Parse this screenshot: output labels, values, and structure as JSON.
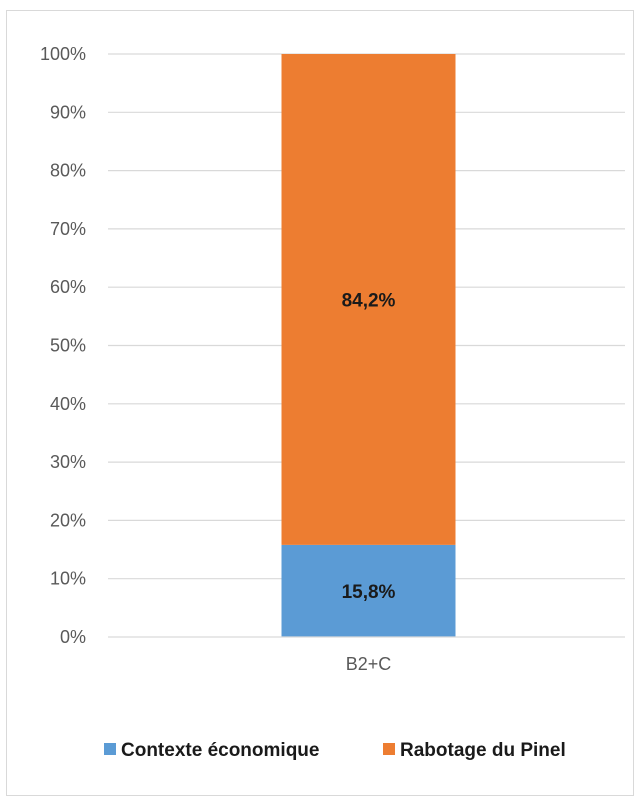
{
  "chart_data": {
    "type": "bar",
    "stacked": true,
    "categories": [
      "B2+C"
    ],
    "series": [
      {
        "name": "Contexte économique",
        "values": [
          15.8
        ],
        "label": "15,8%",
        "color": "#5b9bd5"
      },
      {
        "name": "Rabotage du Pinel",
        "values": [
          84.2
        ],
        "label": "84,2%",
        "color": "#ed7d31"
      }
    ],
    "ylim": [
      0,
      100
    ],
    "yticks": [
      "0%",
      "10%",
      "20%",
      "30%",
      "40%",
      "50%",
      "60%",
      "70%",
      "80%",
      "90%",
      "100%"
    ],
    "grid": true,
    "legend": "bottom",
    "title": "",
    "xlabel": "",
    "ylabel": ""
  }
}
